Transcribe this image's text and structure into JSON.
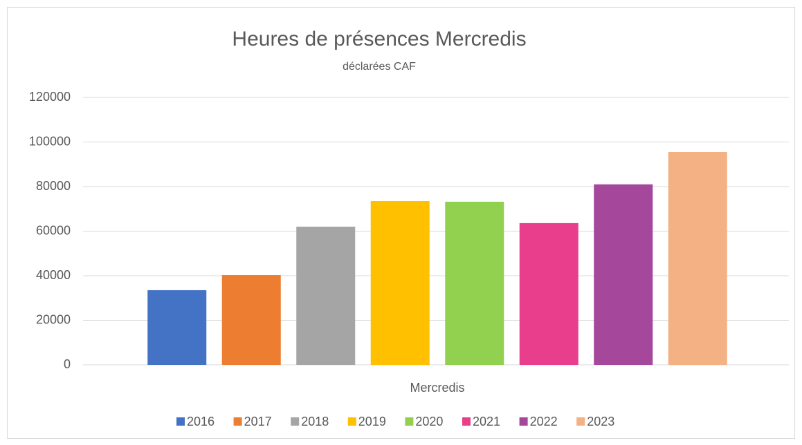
{
  "chart_data": {
    "type": "bar",
    "title": "Heures de présences Mercredis",
    "subtitle": "déclarées CAF",
    "x_label": "Mercredis",
    "categories": [
      null
    ],
    "series": [
      {
        "name": "2016",
        "color": "#4472c4",
        "values": [
          33500
        ]
      },
      {
        "name": "2017",
        "color": "#ed7d31",
        "values": [
          40300
        ]
      },
      {
        "name": "2018",
        "color": "#a5a5a5",
        "values": [
          62000
        ]
      },
      {
        "name": "2019",
        "color": "#ffc000",
        "values": [
          73500
        ]
      },
      {
        "name": "2020",
        "color": "#92d050",
        "values": [
          73200
        ]
      },
      {
        "name": "2021",
        "color": "#e83e8c",
        "values": [
          63600
        ]
      },
      {
        "name": "2022",
        "color": "#a5479b",
        "values": [
          81000
        ]
      },
      {
        "name": "2023",
        "color": "#f4b183",
        "values": [
          95500
        ]
      }
    ],
    "ylim": [
      0,
      120000
    ],
    "yticks": [
      0,
      20000,
      40000,
      60000,
      80000,
      100000,
      120000
    ],
    "grid": true,
    "legend": "bottom"
  }
}
